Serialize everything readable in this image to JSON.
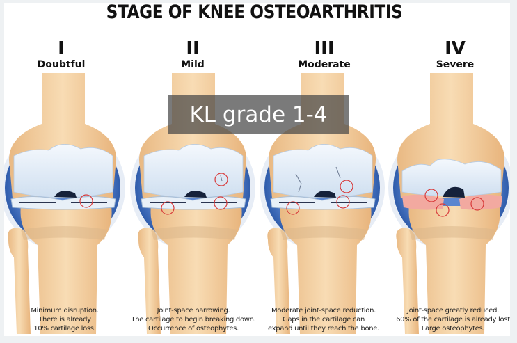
{
  "title": "STAGE OF KNEE OSTEOARTHRITIS",
  "overlay_label": "KL grade 1-4",
  "stages": [
    {
      "numeral": "I",
      "name": "Doubtful",
      "caption": [
        "Minimum disruption.",
        "There is already",
        "10% cartilage loss."
      ]
    },
    {
      "numeral": "II",
      "name": "Mild",
      "caption": [
        "Joint-space narrowing.",
        "The cartilage to begin breaking down.",
        "Occurrence of osteophytes."
      ]
    },
    {
      "numeral": "III",
      "name": "Moderate",
      "caption": [
        "Moderate joint-space reduction.",
        "Gaps in the cartilage can",
        "expand until they reach the bone."
      ]
    },
    {
      "numeral": "IV",
      "name": "Severe",
      "caption": [
        "Joint-space greatly reduced.",
        "60% of the cartilage is already lost",
        "Large osteophytes."
      ]
    }
  ],
  "colors": {
    "bone": "#f2cf9f",
    "cartilage": "#e1ecf7",
    "synovium": "#3d6cc0",
    "marker": "#d83a3a",
    "background": "#eef1f3"
  }
}
